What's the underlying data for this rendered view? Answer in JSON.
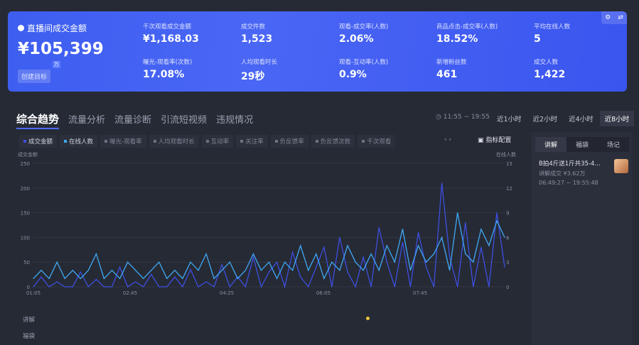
{
  "summary": {
    "title": "直播间成交金额",
    "value": "¥105,399",
    "unit": "万",
    "goal_button": "创建目标",
    "metrics": [
      {
        "label": "千次观看成交金额",
        "value": "¥1,168.03"
      },
      {
        "label": "成交件数",
        "value": "1,523"
      },
      {
        "label": "观看-成交率(人数)",
        "value": "2.06%"
      },
      {
        "label": "商品点击-成交率(人数)",
        "value": "18.52%"
      },
      {
        "label": "平均在线人数",
        "value": "5"
      },
      {
        "label": "曝光-观看率(次数)",
        "value": "17.08%"
      },
      {
        "label": "人均观看时长",
        "value": "29秒"
      },
      {
        "label": "观看-互动率(人数)",
        "value": "0.9%"
      },
      {
        "label": "新增粉丝数",
        "value": "461"
      },
      {
        "label": "成交人数",
        "value": "1,422"
      }
    ],
    "tools": [
      "⚙",
      "⇄"
    ]
  },
  "tabs": [
    "综合趋势",
    "流量分析",
    "流量诊断",
    "引流短视频",
    "违规情况"
  ],
  "time_range": "11:55 ~ 19:55",
  "range_buttons": [
    "近1小时",
    "近2小时",
    "近4小时",
    "近8小时"
  ],
  "legend": [
    "成交金额",
    "在线人数",
    "曝光-观看率",
    "人均观看时长",
    "互动率",
    "关注率",
    "负反馈率",
    "负反馈次数",
    "千次观看"
  ],
  "legend_nav": "‹ ›",
  "config_button": "指标配置",
  "panel": {
    "tabs": [
      "讲解",
      "福袋",
      "场记"
    ],
    "item": {
      "title": "B拍4斤送1斤共35-4...",
      "sub": "讲解成交 ¥3.62万",
      "time": "06:49:27 ~ 19:55:48"
    }
  },
  "rows": [
    "讲解",
    "福袋"
  ],
  "chart_data": {
    "type": "line",
    "ylabel_left": "成交金额",
    "ylabel_right": "在线人数",
    "ylim_left": [
      0,
      250
    ],
    "ylim_right": [
      0,
      15
    ],
    "yticks_left": [
      "250",
      "200",
      "150",
      "100",
      "50",
      "0"
    ],
    "yticks_right": [
      "15",
      "12",
      "9",
      "6",
      "3",
      "0"
    ],
    "xticks": [
      "01:05",
      "02:45",
      "04:25",
      "06:05",
      "07:45"
    ],
    "colors": {
      "成交金额": "#3d4fe0",
      "在线人数": "#3fa9f5"
    },
    "series": [
      {
        "name": "成交金额",
        "axis": "left",
        "values": [
          0,
          20,
          0,
          10,
          0,
          0,
          30,
          0,
          15,
          0,
          0,
          40,
          0,
          10,
          0,
          25,
          0,
          0,
          20,
          0,
          35,
          0,
          10,
          0,
          45,
          0,
          20,
          0,
          60,
          0,
          30,
          50,
          0,
          70,
          20,
          0,
          40,
          80,
          0,
          100,
          30,
          0,
          60,
          0,
          120,
          50,
          0,
          90,
          0,
          110,
          40,
          0,
          210,
          60,
          0,
          130,
          0,
          80,
          0,
          150,
          40
        ]
      },
      {
        "name": "在线人数",
        "axis": "right",
        "values": [
          1,
          2,
          1,
          3,
          1,
          2,
          1,
          2,
          4,
          1,
          2,
          1,
          3,
          2,
          1,
          2,
          3,
          1,
          2,
          1,
          3,
          2,
          4,
          1,
          2,
          3,
          1,
          2,
          4,
          2,
          3,
          1,
          3,
          2,
          5,
          2,
          4,
          1,
          3,
          2,
          5,
          3,
          2,
          4,
          2,
          5,
          3,
          7,
          2,
          5,
          3,
          4,
          6,
          2,
          9,
          4,
          3,
          7,
          5,
          8,
          6
        ]
      }
    ]
  }
}
